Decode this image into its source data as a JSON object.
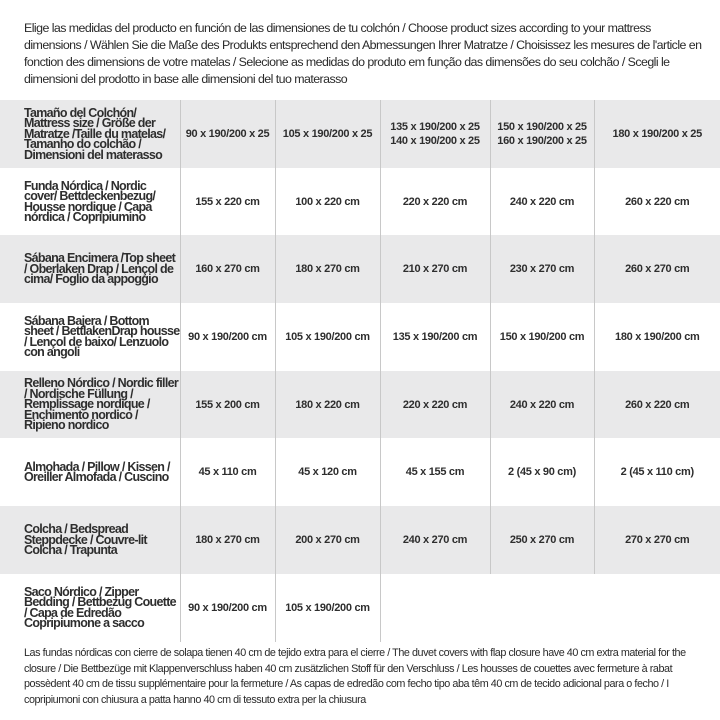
{
  "intro": "Elige las medidas del producto en función de las dimensiones de tu colchón / Choose product sizes according to your mattress dimensions / Wählen Sie die Maße des Produkts entsprechend den Abmessungen Ihrer Matratze / Choisissez les mesures de l'article en fonction des dimensions de votre matelas / Selecione as medidas do produto em função das dimensões do seu colchão / Scegli le dimensioni del prodotto in base alle dimensioni del tuo materasso",
  "table": {
    "header": {
      "label": "Tamaño del Colchón/ Mattress size / Größe der Matratze /Taille du matelas/ Tamanho do colchão / Dimensioni del materasso",
      "sizes": [
        [
          "90 x 190/200 x 25"
        ],
        [
          "105 x 190/200 x 25"
        ],
        [
          "135 x 190/200 x 25",
          "140 x 190/200 x 25"
        ],
        [
          "150 x 190/200 x 25",
          "160 x 190/200 x 25"
        ],
        [
          "180 x 190/200 x 25"
        ]
      ]
    },
    "rows": [
      {
        "label": "Funda Nórdica /  Nordic cover/ Bettdeckenbezug/ Housse nordique  / Capa nórdica / Copripiumino",
        "values": [
          "155 x 220 cm",
          "100 x 220 cm",
          "220 x 220 cm",
          "240 x 220 cm",
          "260 x 220 cm"
        ]
      },
      {
        "label": "Sábana Encimera /Top sheet / Oberlaken Drap / Lençol de cima/ Foglio da appoggio",
        "values": [
          "160 x 270 cm",
          "180 x 270 cm",
          "210 x 270 cm",
          "230 x 270 cm",
          "260 x 270 cm"
        ]
      },
      {
        "label": "Sábana Bajera / Bottom sheet / BettlakenDrap housse / Lençol de baixo/ Lenzuolo con angoli",
        "values": [
          "90 x 190/200 cm",
          "105 x 190/200 cm",
          "135 x 190/200 cm",
          "150 x 190/200 cm",
          "180 x 190/200 cm"
        ]
      },
      {
        "label": "Relleno Nórdico / Nordic filler / Nordische Füllung / Remplissage nordique / Enchimento nordico / Ripieno nordico",
        "values": [
          "155 x 200 cm",
          "180 x 220 cm",
          "220 x 220 cm",
          "240 x 220 cm",
          "260 x 220 cm"
        ]
      },
      {
        "label": "Almohada  / Pillow / Kissen / Oreiller Almofada / Cuscino",
        "values": [
          "45 x 110 cm",
          "45 x 120 cm",
          "45 x 155 cm",
          "2 (45 x 90 cm)",
          "2 (45 x 110 cm)"
        ]
      },
      {
        "label": "Colcha / Bedspread Steppdecke / Couvre-lit Colcha / Trapunta",
        "values": [
          "180 x 270 cm",
          "200 x 270 cm",
          "240 x 270 cm",
          "250 x 270 cm",
          "270 x 270 cm"
        ]
      },
      {
        "label": "Saco Nórdico / Zipper Bedding / Bettbezug Couette  / Capa de Edredão Copripiumone a sacco",
        "values": [
          "90 x 190/200 cm",
          "105 x 190/200 cm"
        ]
      }
    ]
  },
  "note": "Las fundas nórdicas con cierre de solapa tienen 40 cm de tejido extra para el cierre  / The duvet covers with flap closure have 40 cm extra material for the closure / Die Bettbezüge mit Klappenverschluss haben 40 cm zusätzlichen Stoff für den Verschluss / Les housses de couettes avec fermeture à rabat possèdent 40 cm de tissu supplémentaire pour la fermeture / As capas de edredão com fecho tipo aba têm 40 cm de tecido adicional para o fecho / I copripiumoni con chiusura a patta hanno 40 cm di tessuto extra per la chiusura",
  "colors": {
    "row_shade": "#e9e9ea",
    "text": "#2e2e2e",
    "divider": "#c8c8c8"
  }
}
